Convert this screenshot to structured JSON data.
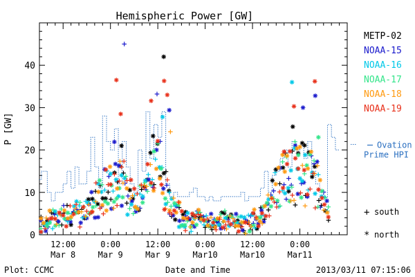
{
  "chart_data": {
    "type": "scatter",
    "title": "Hemispheric Power [GW]",
    "ylabel": "P [GW]",
    "xlabel": "Date and Time",
    "ylim": [
      0,
      50
    ],
    "y_ticks": [
      0,
      10,
      20,
      30,
      40
    ],
    "xlim_hours": [
      0,
      78
    ],
    "x_ticks": [
      {
        "t": 6,
        "time": "12:00",
        "date": "Mar 8"
      },
      {
        "t": 18,
        "time": "0:00",
        "date": "Mar 9"
      },
      {
        "t": 30,
        "time": "12:00",
        "date": "Mar 9"
      },
      {
        "t": 42,
        "time": "0:00",
        "date": "Mar10"
      },
      {
        "t": 54,
        "time": "12:00",
        "date": "Mar10"
      },
      {
        "t": 66,
        "time": "0:00",
        "date": "Mar11"
      }
    ],
    "series": [
      {
        "name": "METP-02",
        "color": "#000000"
      },
      {
        "name": "NOAA-15",
        "color": "#1a1acc"
      },
      {
        "name": "NOAA-16",
        "color": "#00c8e8"
      },
      {
        "name": "NOAA-17",
        "color": "#33e58a"
      },
      {
        "name": "NOAA-18",
        "color": "#ff9a10"
      },
      {
        "name": "NOAA-19",
        "color": "#e8301a"
      }
    ],
    "hpi_series": {
      "name": "Ovation Prime HPI",
      "label_lines": [
        "Ovation",
        "Prime HPI"
      ],
      "color": "#2a6fc0",
      "steps": [
        [
          0,
          13
        ],
        [
          0.5,
          15
        ],
        [
          2,
          10
        ],
        [
          3,
          8
        ],
        [
          4,
          10
        ],
        [
          6,
          12
        ],
        [
          7,
          15
        ],
        [
          8,
          11
        ],
        [
          9,
          16
        ],
        [
          10,
          12
        ],
        [
          11,
          12
        ],
        [
          12,
          15
        ],
        [
          13,
          23
        ],
        [
          14,
          16
        ],
        [
          15,
          11
        ],
        [
          16,
          28
        ],
        [
          17,
          22
        ],
        [
          18,
          20
        ],
        [
          19,
          25
        ],
        [
          20,
          12
        ],
        [
          21,
          22
        ],
        [
          22,
          16
        ],
        [
          23,
          12
        ],
        [
          24,
          10
        ],
        [
          25,
          20
        ],
        [
          26,
          15
        ],
        [
          27,
          29
        ],
        [
          28,
          18
        ],
        [
          29,
          26
        ],
        [
          30,
          23
        ],
        [
          31,
          29
        ],
        [
          32,
          12
        ],
        [
          33,
          9
        ],
        [
          34,
          10
        ],
        [
          35,
          9
        ],
        [
          36,
          9
        ],
        [
          37,
          9
        ],
        [
          38,
          10
        ],
        [
          39,
          11
        ],
        [
          40,
          9
        ],
        [
          41,
          9
        ],
        [
          42,
          8
        ],
        [
          43,
          9
        ],
        [
          44,
          8
        ],
        [
          45,
          8
        ],
        [
          46,
          9
        ],
        [
          47,
          9
        ],
        [
          48,
          9
        ],
        [
          49,
          9
        ],
        [
          50,
          9
        ],
        [
          51,
          10
        ],
        [
          52,
          8
        ],
        [
          53,
          9
        ],
        [
          54,
          9
        ],
        [
          55,
          9
        ],
        [
          56,
          11
        ],
        [
          57,
          15
        ],
        [
          58,
          10
        ],
        [
          59,
          14
        ],
        [
          60,
          15
        ],
        [
          61,
          18
        ],
        [
          62,
          20
        ],
        [
          63,
          16
        ],
        [
          64,
          22
        ],
        [
          65,
          20
        ],
        [
          66,
          21
        ],
        [
          67,
          18
        ],
        [
          68,
          22
        ],
        [
          69,
          15
        ],
        [
          70,
          12
        ],
        [
          71,
          10
        ],
        [
          72,
          9
        ],
        [
          73,
          26
        ],
        [
          74,
          23
        ],
        [
          75,
          20
        ]
      ]
    },
    "annotations": {
      "south_legend": "south",
      "north_legend": "north",
      "plot_credit": "Plot: CCMC",
      "timestamp": "2013/03/11 07:15:06"
    },
    "notable_points": [
      {
        "series": "NOAA-15",
        "marker": "south",
        "t": 21.5,
        "y": 45
      },
      {
        "series": "METP-02",
        "marker": "north",
        "t": 31.5,
        "y": 42
      },
      {
        "series": "NOAA-19",
        "marker": "north",
        "t": 19.5,
        "y": 36.5
      },
      {
        "series": "NOAA-19",
        "marker": "north",
        "t": 31.6,
        "y": 36.3
      },
      {
        "series": "NOAA-16",
        "marker": "north",
        "t": 64.0,
        "y": 36.0
      },
      {
        "series": "NOAA-19",
        "marker": "north",
        "t": 69.8,
        "y": 36.2
      },
      {
        "series": "NOAA-15",
        "marker": "south",
        "t": 29.8,
        "y": 33.2
      },
      {
        "series": "NOAA-15",
        "marker": "north",
        "t": 69.9,
        "y": 32.8
      },
      {
        "series": "NOAA-19",
        "marker": "north",
        "t": 32.4,
        "y": 33.0
      },
      {
        "series": "NOAA-19",
        "marker": "north",
        "t": 28.3,
        "y": 31.6
      },
      {
        "series": "NOAA-15",
        "marker": "north",
        "t": 66.8,
        "y": 30.0
      },
      {
        "series": "NOAA-19",
        "marker": "north",
        "t": 64.5,
        "y": 30.3
      },
      {
        "series": "NOAA-15",
        "marker": "north",
        "t": 32.9,
        "y": 29.4
      },
      {
        "series": "NOAA-16",
        "marker": "north",
        "t": 31.2,
        "y": 27.8
      },
      {
        "series": "NOAA-19",
        "marker": "north",
        "t": 20.6,
        "y": 28.5
      },
      {
        "series": "METP-02",
        "marker": "north",
        "t": 64.2,
        "y": 25.5
      },
      {
        "series": "NOAA-18",
        "marker": "south",
        "t": 33.2,
        "y": 24.3
      },
      {
        "series": "METP-02",
        "marker": "north",
        "t": 28.8,
        "y": 23.3
      },
      {
        "series": "NOAA-15",
        "marker": "north",
        "t": 19.0,
        "y": 21.9
      },
      {
        "series": "METP-02",
        "marker": "north",
        "t": 20.8,
        "y": 21.0
      },
      {
        "series": "NOAA-17",
        "marker": "north",
        "t": 70.7,
        "y": 23.0
      },
      {
        "series": "METP-02",
        "marker": "north",
        "t": 67.2,
        "y": 21.1
      },
      {
        "series": "NOAA-19",
        "marker": "north",
        "t": 62.0,
        "y": 19.6
      }
    ],
    "scatter_profile": [
      [
        0,
        2.5
      ],
      [
        2,
        3.5
      ],
      [
        4,
        5
      ],
      [
        6,
        4.5
      ],
      [
        8,
        5
      ],
      [
        10,
        6
      ],
      [
        12,
        7
      ],
      [
        14,
        9
      ],
      [
        16,
        11
      ],
      [
        18,
        13
      ],
      [
        20,
        15
      ],
      [
        22,
        12
      ],
      [
        24,
        9
      ],
      [
        26,
        10
      ],
      [
        28,
        15
      ],
      [
        30,
        18
      ],
      [
        32,
        14
      ],
      [
        33,
        8
      ],
      [
        34,
        7
      ],
      [
        36,
        5
      ],
      [
        38,
        4
      ],
      [
        40,
        5
      ],
      [
        42,
        4
      ],
      [
        44,
        3
      ],
      [
        46,
        3.5
      ],
      [
        48,
        4
      ],
      [
        50,
        3
      ],
      [
        52,
        3
      ],
      [
        54,
        4
      ],
      [
        56,
        5
      ],
      [
        58,
        8
      ],
      [
        60,
        12
      ],
      [
        62,
        15
      ],
      [
        64,
        17
      ],
      [
        66,
        18
      ],
      [
        68,
        16
      ],
      [
        70,
        14
      ],
      [
        72,
        9
      ],
      [
        73,
        5
      ]
    ],
    "grid": false,
    "legend_placement": "right"
  }
}
